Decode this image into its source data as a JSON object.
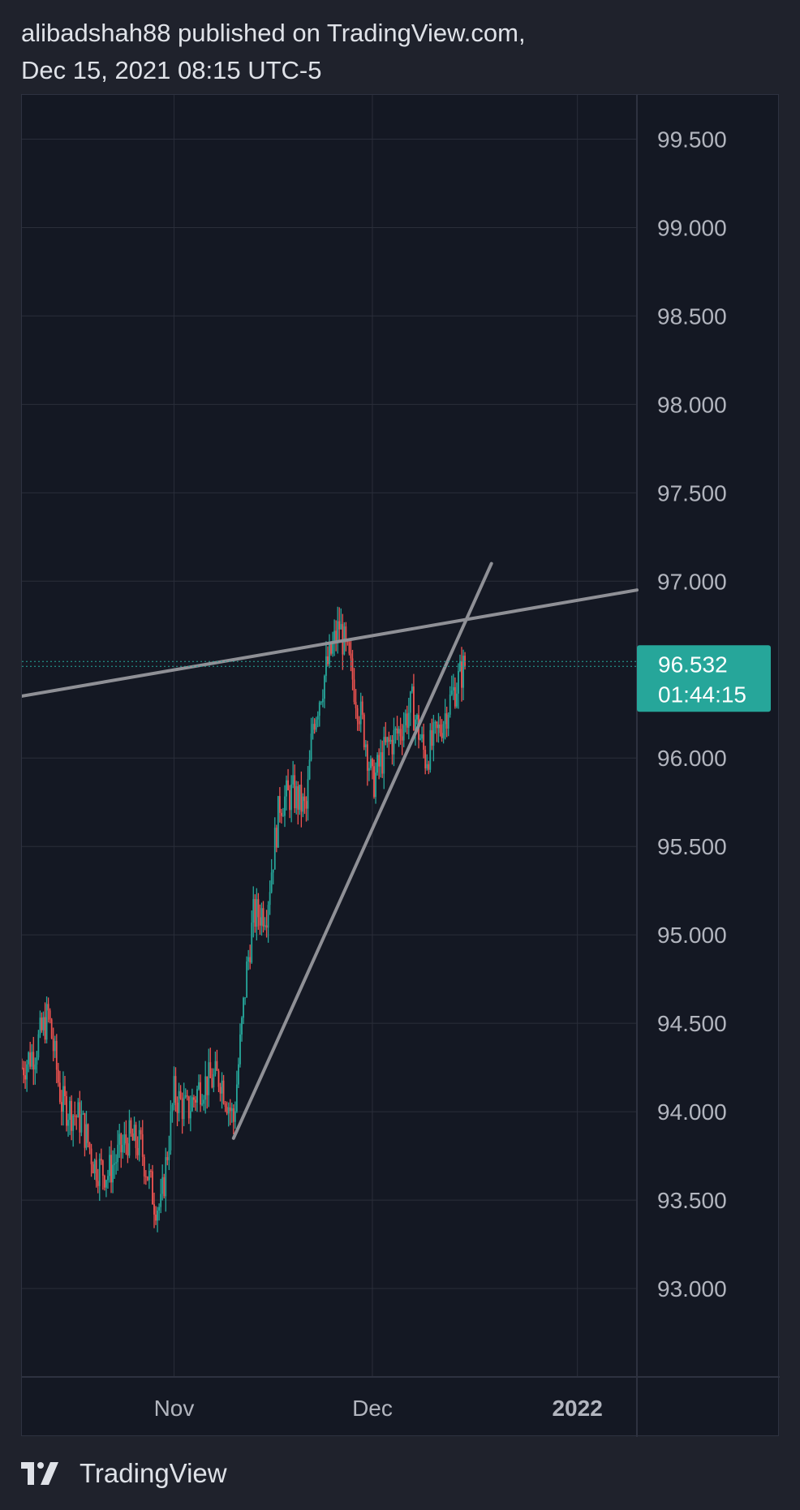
{
  "header": {
    "publisher_line": "alibadshah88 published on TradingView.com,",
    "date_line": "Dec 15, 2021 08:15 UTC-5"
  },
  "footer": {
    "brand": "TradingView",
    "logo_icon": "tradingview-logo-icon"
  },
  "colors": {
    "background": "#1f222c",
    "chart_background": "#141823",
    "grid": "#2a2e3a",
    "up": "#26a69a",
    "down": "#ef5350",
    "trendline": "#8f9096",
    "price_tag": "#26a69a",
    "axis_text": "#b2b5be"
  },
  "chart_data": {
    "type": "candlestick",
    "title": "",
    "xlabel": "",
    "ylabel": "",
    "ylim": [
      92.5,
      99.75
    ],
    "y_ticks": [
      "99.500",
      "99.000",
      "98.500",
      "98.000",
      "97.500",
      "97.000",
      "96.000",
      "95.500",
      "95.000",
      "94.500",
      "94.000",
      "93.500",
      "93.000"
    ],
    "x_ticks": [
      {
        "label": "Nov",
        "date": "2021-11-01",
        "bold": false
      },
      {
        "label": "Dec",
        "date": "2021-12-01",
        "bold": false
      },
      {
        "label": "2022",
        "date": "2022-01-01",
        "bold": true
      }
    ],
    "xlim": [
      "2021-10-09",
      "2022-01-10"
    ],
    "last_price": {
      "value": "96.532",
      "countdown": "01:44:15"
    },
    "series": [
      {
        "name": "",
        "price_path": [
          [
            "2021-10-09",
            94.25
          ],
          [
            "2021-10-11",
            94.35
          ],
          [
            "2021-10-13",
            94.55
          ],
          [
            "2021-10-15",
            94.05
          ],
          [
            "2021-10-18",
            93.95
          ],
          [
            "2021-10-20",
            93.7
          ],
          [
            "2021-10-22",
            93.65
          ],
          [
            "2021-10-25",
            93.85
          ],
          [
            "2021-10-27",
            93.8
          ],
          [
            "2021-10-29",
            93.5
          ],
          [
            "2021-10-30",
            93.45
          ],
          [
            "2021-11-01",
            94.1
          ],
          [
            "2021-11-03",
            94.0
          ],
          [
            "2021-11-05",
            94.15
          ],
          [
            "2021-11-08",
            94.2
          ],
          [
            "2021-11-10",
            93.95
          ],
          [
            "2021-11-12",
            94.8
          ],
          [
            "2021-11-13",
            95.1
          ],
          [
            "2021-11-15",
            95.15
          ],
          [
            "2021-11-17",
            95.75
          ],
          [
            "2021-11-19",
            95.8
          ],
          [
            "2021-11-21",
            95.7
          ],
          [
            "2021-11-22",
            96.2
          ],
          [
            "2021-11-24",
            96.5
          ],
          [
            "2021-11-26",
            96.75
          ],
          [
            "2021-11-28",
            96.45
          ],
          [
            "2021-11-30",
            96.1
          ],
          [
            "2021-12-01",
            95.85
          ],
          [
            "2021-12-03",
            96.05
          ],
          [
            "2021-12-05",
            96.15
          ],
          [
            "2021-12-07",
            96.3
          ],
          [
            "2021-12-09",
            96.0
          ],
          [
            "2021-12-11",
            96.15
          ],
          [
            "2021-12-13",
            96.35
          ],
          [
            "2021-12-15",
            96.53
          ]
        ]
      }
    ],
    "trendlines": [
      {
        "from": [
          "2021-10-09",
          96.35
        ],
        "to": [
          "2022-01-10",
          96.95
        ]
      },
      {
        "from": [
          "2021-11-10",
          93.85
        ],
        "to": [
          "2021-12-19",
          97.1
        ]
      }
    ]
  }
}
